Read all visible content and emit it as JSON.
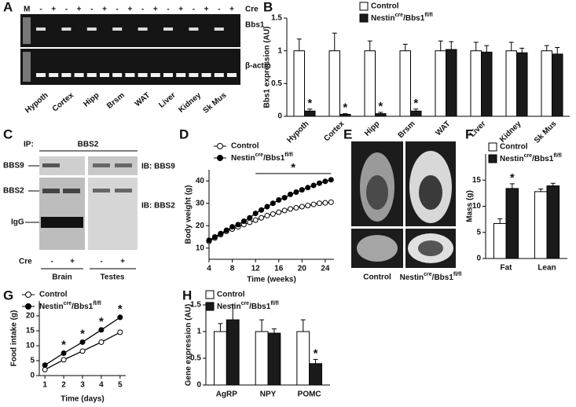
{
  "panel_letters": [
    "A",
    "B",
    "C",
    "D",
    "E",
    "F",
    "G",
    "H"
  ],
  "gel_A": {
    "marker": "M",
    "cre_label": "Cre",
    "lanes": [
      "-",
      "+",
      "-",
      "+",
      "-",
      "+",
      "-",
      "+",
      "-",
      "+",
      "-",
      "+",
      "-",
      "+",
      "-",
      "+"
    ],
    "bands": [
      "Bbs1",
      "β-actin"
    ],
    "tissues": [
      "Hypoth",
      "Cortex",
      "Hipp",
      "Brsm",
      "WAT",
      "Liver",
      "Kidney",
      "Sk Mus"
    ]
  },
  "blot_C": {
    "ip": "IP:",
    "ip_target": "BBS2",
    "bands": [
      "BBS9",
      "BBS2",
      "IgG"
    ],
    "ib": [
      "IB: BBS9",
      "IB: BBS2"
    ],
    "cre_label": "Cre",
    "lanes": [
      "-",
      "+",
      "-",
      "+"
    ],
    "tissues": [
      "Brain",
      "Testes"
    ]
  },
  "mri_E": {
    "labels": [
      "Control",
      [
        "Nestin",
        "cre",
        "/Bbs1",
        "fl/fl"
      ]
    ]
  },
  "chart_data": [
    {
      "type": "bar",
      "y_label": "Bbs1 expression (AU)",
      "categories": [
        "Hypoth",
        "Cortex",
        "Hipp",
        "Brsm",
        "WAT",
        "Liver",
        "Kidney",
        "Sk Mus"
      ],
      "series": [
        {
          "name": "Control",
          "color": "#000000",
          "fill": "#ffffff",
          "values": [
            1,
            1,
            1,
            1,
            1,
            1,
            1,
            1
          ],
          "errors": [
            0.18,
            0.27,
            0.15,
            0.1,
            0.15,
            0.13,
            0.13,
            0.08
          ]
        },
        {
          "name": [
            "Nestin",
            "cre",
            "/Bbs1",
            "fl/fl"
          ],
          "color": "#000000",
          "fill": "#1a1a1a",
          "values": [
            0.08,
            0.03,
            0.04,
            0.08,
            1.02,
            0.98,
            0.97,
            0.95
          ],
          "errors": [
            0.03,
            0.01,
            0.02,
            0.03,
            0.12,
            0.1,
            0.07,
            0.1
          ]
        }
      ],
      "ylim": [
        0,
        1.5
      ],
      "yticks": [
        0,
        0.5,
        1,
        1.5
      ],
      "annotations": [
        {
          "text": "*",
          "category": "Hypoth"
        },
        {
          "text": "*",
          "category": "Cortex"
        },
        {
          "text": "*",
          "category": "Hipp"
        },
        {
          "text": "*",
          "category": "Brsm"
        }
      ]
    },
    {
      "type": "line",
      "x_label": "Time (weeks)",
      "y_label": "Body weight (g)",
      "x": [
        4,
        5,
        6,
        7,
        8,
        9,
        10,
        11,
        12,
        13,
        14,
        15,
        16,
        17,
        18,
        19,
        20,
        21,
        22,
        23,
        24,
        25
      ],
      "series": [
        {
          "name": "Control",
          "color": "#000000",
          "fill": "#ffffff",
          "values": [
            13,
            14.5,
            16,
            17.5,
            18.5,
            19.5,
            20.5,
            21.5,
            22.5,
            23.5,
            24.5,
            25.2,
            26,
            26.8,
            27.5,
            28,
            28.5,
            29,
            29.5,
            30,
            30.2,
            30.5
          ]
        },
        {
          "name": [
            "Nestin",
            "cre",
            "/Bbs1",
            "fl/fl"
          ],
          "color": "#000000",
          "fill": "#000000",
          "values": [
            13.5,
            15,
            16.5,
            18,
            19.5,
            20.5,
            22,
            23.5,
            25.5,
            27,
            28.5,
            30,
            31.5,
            32.5,
            34,
            35,
            36,
            37,
            38,
            39,
            39.8,
            40.5
          ]
        }
      ],
      "xlim": [
        4,
        25.5
      ],
      "xticks": [
        4,
        8,
        12,
        16,
        20,
        24
      ],
      "ylim": [
        5,
        45
      ],
      "yticks": [
        10,
        20,
        30,
        40
      ],
      "annotations": [
        {
          "text": "*",
          "x": [
            12,
            25
          ]
        }
      ]
    },
    {
      "type": "bar",
      "y_label": "Mass (g)",
      "categories": [
        "Fat",
        "Lean"
      ],
      "series": [
        {
          "name": "Control",
          "color": "#000000",
          "fill": "#ffffff",
          "values": [
            6.7,
            12.8
          ],
          "errors": [
            0.9,
            0.5
          ]
        },
        {
          "name": [
            "Nestin",
            "cre",
            "/Bbs1",
            "fl/fl"
          ],
          "color": "#000000",
          "fill": "#1a1a1a",
          "values": [
            13.4,
            13.9
          ],
          "errors": [
            0.9,
            0.5
          ]
        }
      ],
      "ylim": [
        0,
        20
      ],
      "yticks": [
        0,
        5,
        10,
        15
      ],
      "annotations": [
        {
          "text": "*",
          "category": "Fat"
        }
      ]
    },
    {
      "type": "line",
      "x_label": "Time (days)",
      "y_label": "Food intake (g)",
      "x": [
        1,
        2,
        3,
        4,
        5
      ],
      "series": [
        {
          "name": "Control",
          "color": "#000000",
          "fill": "#ffffff",
          "values": [
            2,
            5.3,
            8.2,
            11.2,
            14.5
          ]
        },
        {
          "name": [
            "Nestin",
            "cre",
            "/Bbs1",
            "fl/fl"
          ],
          "color": "#000000",
          "fill": "#000000",
          "values": [
            3.5,
            7.5,
            11.2,
            15.3,
            19.5
          ]
        }
      ],
      "xlim": [
        0.7,
        5.3
      ],
      "xticks": [
        1,
        2,
        3,
        4,
        5
      ],
      "ylim": [
        0,
        25
      ],
      "yticks": [
        0,
        5,
        10,
        15,
        20
      ],
      "annotations": [
        {
          "text": "*",
          "x": 2
        },
        {
          "text": "*",
          "x": 3
        },
        {
          "text": "*",
          "x": 4
        },
        {
          "text": "*",
          "x": 5
        }
      ]
    },
    {
      "type": "bar",
      "y_label": "Gene expression (AU)",
      "categories": [
        "AgRP",
        "NPY",
        "POMC"
      ],
      "series": [
        {
          "name": "Control",
          "color": "#000000",
          "fill": "#ffffff",
          "values": [
            1,
            1,
            1
          ],
          "errors": [
            0.15,
            0.22,
            0.22
          ]
        },
        {
          "name": [
            "Nestin",
            "cre",
            "/Bbs1",
            "fl/fl"
          ],
          "color": "#000000",
          "fill": "#1a1a1a",
          "values": [
            1.22,
            0.97,
            0.4
          ],
          "errors": [
            0.28,
            0.08,
            0.08
          ]
        }
      ],
      "ylim": [
        0,
        1.5
      ],
      "yticks": [
        0,
        0.5,
        1,
        1.5
      ],
      "annotations": [
        {
          "text": "*",
          "category": "POMC"
        }
      ]
    }
  ]
}
